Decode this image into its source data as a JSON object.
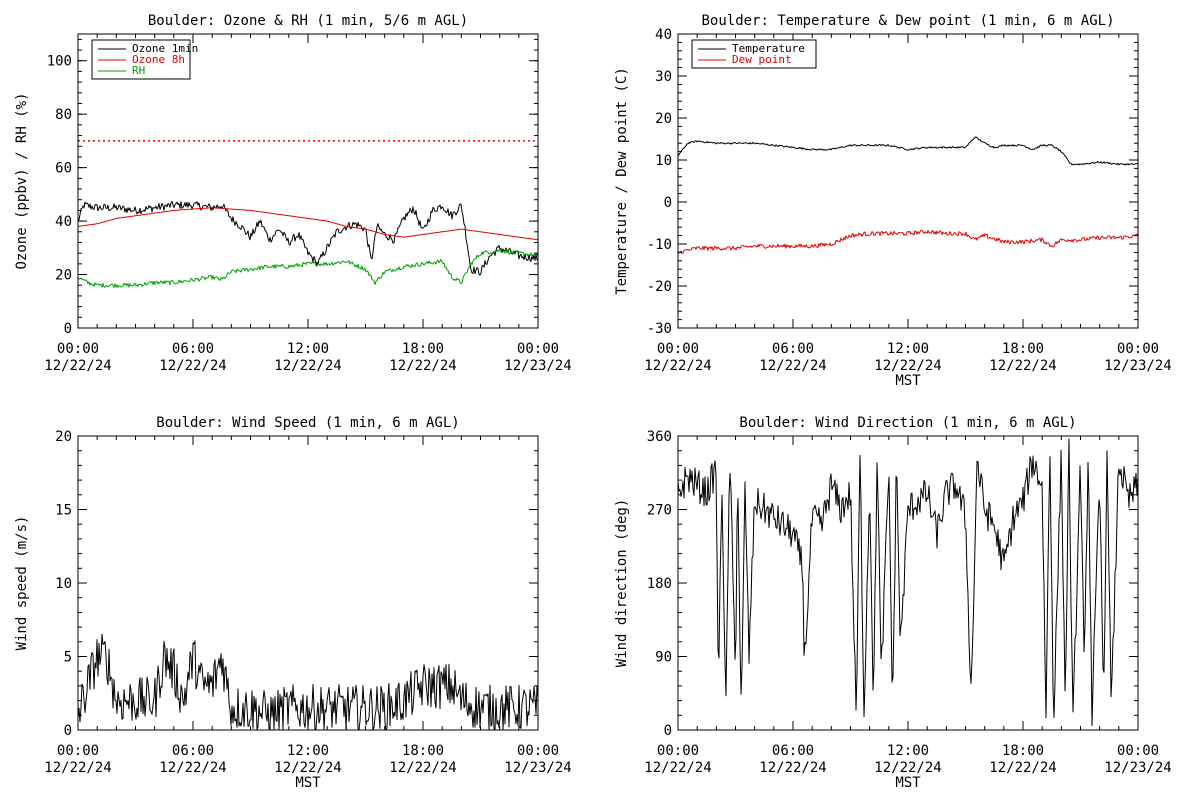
{
  "chart_data": [
    {
      "type": "line",
      "title": "Boulder: Ozone & RH (1 min, 5/6 m AGL)",
      "ylabel": "Ozone (ppbv) / RH (%)",
      "xlabel": "",
      "xlim": [
        0,
        24
      ],
      "ylim": [
        0,
        110
      ],
      "yticks": [
        0,
        20,
        40,
        60,
        80,
        100
      ],
      "xticks": [
        {
          "t": "00:00",
          "d": "12/22/24"
        },
        {
          "t": "06:00",
          "d": "12/22/24"
        },
        {
          "t": "12:00",
          "d": "12/22/24"
        },
        {
          "t": "18:00",
          "d": "12/22/24"
        },
        {
          "t": "00:00",
          "d": "12/23/24"
        }
      ],
      "legend": "top-left",
      "reference_line": {
        "y": 70,
        "color": "#e00000",
        "style": "dotted"
      },
      "series": [
        {
          "name": "Ozone 1min",
          "color": "#000000",
          "jitter": 1.5,
          "x": [
            0,
            0.3,
            1,
            2,
            3,
            4,
            5,
            6,
            7,
            7.5,
            8,
            8.5,
            9,
            9.5,
            10,
            10.5,
            11,
            11.5,
            12,
            12.5,
            13,
            13.5,
            14,
            14.5,
            15,
            15.3,
            15.6,
            16,
            16.5,
            17,
            17.5,
            18,
            18.5,
            19,
            19.5,
            20,
            20.2,
            20.5,
            21,
            21.5,
            22,
            23,
            24
          ],
          "y": [
            40,
            46,
            45,
            45,
            44,
            45,
            46,
            46,
            45,
            46,
            41,
            38,
            34,
            40,
            33,
            37,
            32,
            35,
            28,
            24,
            30,
            36,
            38,
            39,
            37,
            25,
            38,
            35,
            33,
            41,
            45,
            36,
            44,
            46,
            42,
            46,
            37,
            22,
            21,
            27,
            30,
            27,
            26
          ]
        },
        {
          "name": "Ozone 8h",
          "color": "#e00000",
          "jitter": 0,
          "x": [
            0,
            1,
            2,
            3,
            4,
            5,
            6,
            7,
            8,
            9,
            10,
            11,
            12,
            13,
            14,
            15,
            16,
            17,
            18,
            19,
            20,
            21,
            22,
            23,
            24
          ],
          "y": [
            38,
            39,
            41,
            42,
            43,
            44,
            44.5,
            45,
            44.5,
            44,
            43,
            42,
            41,
            40,
            38,
            37,
            35,
            34,
            35,
            36,
            37,
            36,
            35,
            34,
            33
          ]
        },
        {
          "name": "RH",
          "color": "#00a000",
          "jitter": 0.8,
          "x": [
            0,
            0.5,
            1,
            2,
            3,
            4,
            5,
            6,
            7,
            7.5,
            8,
            9,
            10,
            11,
            12,
            13,
            14,
            15,
            15.5,
            16,
            17,
            18,
            19,
            19.5,
            20,
            20.5,
            21,
            22,
            23,
            24
          ],
          "y": [
            19,
            17,
            16,
            16,
            16,
            17,
            17,
            18,
            19,
            18,
            21,
            22,
            23,
            23,
            24,
            24,
            25,
            22,
            17,
            21,
            23,
            24,
            25,
            19,
            17,
            24,
            28,
            29,
            28,
            27
          ]
        }
      ]
    },
    {
      "type": "line",
      "title": "Boulder: Temperature & Dew point (1 min, 6 m AGL)",
      "ylabel": "Temperature / Dew point (C)",
      "xlabel": "MST",
      "xlim": [
        0,
        24
      ],
      "ylim": [
        -30,
        40
      ],
      "yticks": [
        -30,
        -20,
        -10,
        0,
        10,
        20,
        30,
        40
      ],
      "xticks": [
        {
          "t": "00:00",
          "d": "12/22/24"
        },
        {
          "t": "06:00",
          "d": "12/22/24"
        },
        {
          "t": "12:00",
          "d": "12/22/24"
        },
        {
          "t": "18:00",
          "d": "12/22/24"
        },
        {
          "t": "00:00",
          "d": "12/23/24"
        }
      ],
      "legend": "top-left",
      "series": [
        {
          "name": "Temperature",
          "color": "#000000",
          "jitter": 0.2,
          "x": [
            0,
            0.5,
            1,
            2,
            3,
            4,
            5,
            6,
            7,
            8,
            9,
            10,
            11,
            12,
            13,
            14,
            15,
            15.5,
            16,
            16.5,
            17,
            18,
            18.5,
            19,
            19.5,
            20,
            20.5,
            21,
            22,
            23,
            24
          ],
          "y": [
            11,
            14,
            14.5,
            14,
            14,
            14,
            13.5,
            13,
            12.5,
            12.5,
            13.5,
            13.5,
            13.5,
            12.5,
            13,
            13,
            13,
            15.5,
            14,
            13,
            13.5,
            13.5,
            12.5,
            13.5,
            13.5,
            12,
            9,
            9,
            9.5,
            9,
            9
          ]
        },
        {
          "name": "Dew point",
          "color": "#e00000",
          "jitter": 0.5,
          "x": [
            0,
            1,
            2,
            3,
            4,
            5,
            6,
            7,
            8,
            9,
            10,
            11,
            12,
            13,
            14,
            15,
            15.5,
            16,
            17,
            18,
            19,
            19.5,
            20,
            21,
            22,
            23,
            24
          ],
          "y": [
            -12,
            -11,
            -11,
            -11,
            -10.5,
            -10.5,
            -10.5,
            -10.5,
            -10,
            -8,
            -7.5,
            -7.5,
            -7.5,
            -7,
            -7.5,
            -7.5,
            -9,
            -8,
            -9.5,
            -9.5,
            -9,
            -10.5,
            -9,
            -9,
            -8.5,
            -8.5,
            -8
          ]
        }
      ]
    },
    {
      "type": "line",
      "title": "Boulder: Wind Speed (1 min, 6 m AGL)",
      "ylabel": "Wind speed (m/s)",
      "xlabel": "MST",
      "xlim": [
        0,
        24
      ],
      "ylim": [
        0,
        20
      ],
      "yticks": [
        0,
        5,
        10,
        15,
        20
      ],
      "xticks": [
        {
          "t": "00:00",
          "d": "12/22/24"
        },
        {
          "t": "06:00",
          "d": "12/22/24"
        },
        {
          "t": "12:00",
          "d": "12/22/24"
        },
        {
          "t": "18:00",
          "d": "12/22/24"
        },
        {
          "t": "00:00",
          "d": "12/23/24"
        }
      ],
      "legend": "none",
      "series": [
        {
          "name": "",
          "color": "#000000",
          "jitter": 1.6,
          "x": [
            0,
            0.5,
            1,
            1.5,
            2,
            3,
            4,
            4.5,
            5,
            5.5,
            6,
            6.5,
            7,
            7.5,
            8,
            9,
            10,
            11,
            12,
            13,
            14,
            15,
            16,
            17,
            18,
            18.5,
            19,
            19.5,
            20,
            21,
            22,
            23,
            24
          ],
          "y": [
            1,
            3,
            5,
            5,
            2,
            2,
            2,
            5,
            4,
            2,
            5,
            3,
            3,
            5,
            1.5,
            1.5,
            1,
            1.5,
            1.5,
            1.5,
            1.5,
            1.5,
            1.5,
            2,
            3,
            3,
            3,
            3,
            2,
            1.5,
            1.5,
            1.5,
            1.5
          ]
        }
      ]
    },
    {
      "type": "line",
      "title": "Boulder: Wind Direction (1 min, 6 m AGL)",
      "ylabel": "Wind direction (deg)",
      "xlabel": "MST",
      "xlim": [
        0,
        24
      ],
      "ylim": [
        0,
        360
      ],
      "yticks": [
        0,
        90,
        180,
        270,
        360
      ],
      "xticks": [
        {
          "t": "00:00",
          "d": "12/22/24"
        },
        {
          "t": "06:00",
          "d": "12/22/24"
        },
        {
          "t": "12:00",
          "d": "12/22/24"
        },
        {
          "t": "18:00",
          "d": "12/22/24"
        },
        {
          "t": "00:00",
          "d": "12/23/24"
        }
      ],
      "legend": "none",
      "series": [
        {
          "name": "",
          "color": "#000000",
          "jitter": 20,
          "x": [
            0,
            0.5,
            1,
            1.5,
            2,
            2.1,
            2.3,
            2.5,
            2.7,
            3,
            3.1,
            3.3,
            3.5,
            3.7,
            4,
            4.5,
            5,
            5.5,
            6,
            6.5,
            6.6,
            7,
            7.5,
            8,
            8.5,
            9,
            9.3,
            9.5,
            9.7,
            10,
            10.2,
            10.4,
            10.6,
            11,
            11.2,
            11.4,
            11.6,
            12,
            12.5,
            13,
            13.5,
            14,
            14.5,
            15,
            15.3,
            15.6,
            16,
            16.5,
            17,
            17.5,
            18,
            18.5,
            19,
            19.2,
            19.4,
            19.6,
            20,
            20.2,
            20.4,
            20.6,
            21,
            21.2,
            21.4,
            21.6,
            22,
            22.2,
            22.4,
            22.6,
            23,
            23.5,
            24
          ],
          "y": [
            290,
            310,
            300,
            290,
            320,
            50,
            300,
            20,
            340,
            60,
            330,
            10,
            300,
            90,
            280,
            270,
            260,
            250,
            240,
            200,
            80,
            260,
            250,
            300,
            270,
            290,
            10,
            340,
            20,
            300,
            30,
            350,
            60,
            320,
            20,
            340,
            100,
            270,
            280,
            290,
            240,
            290,
            300,
            260,
            40,
            330,
            270,
            250,
            200,
            260,
            280,
            330,
            300,
            20,
            350,
            10,
            340,
            30,
            350,
            0,
            330,
            60,
            350,
            20,
            300,
            40,
            350,
            20,
            330,
            280,
            300
          ]
        }
      ]
    }
  ]
}
